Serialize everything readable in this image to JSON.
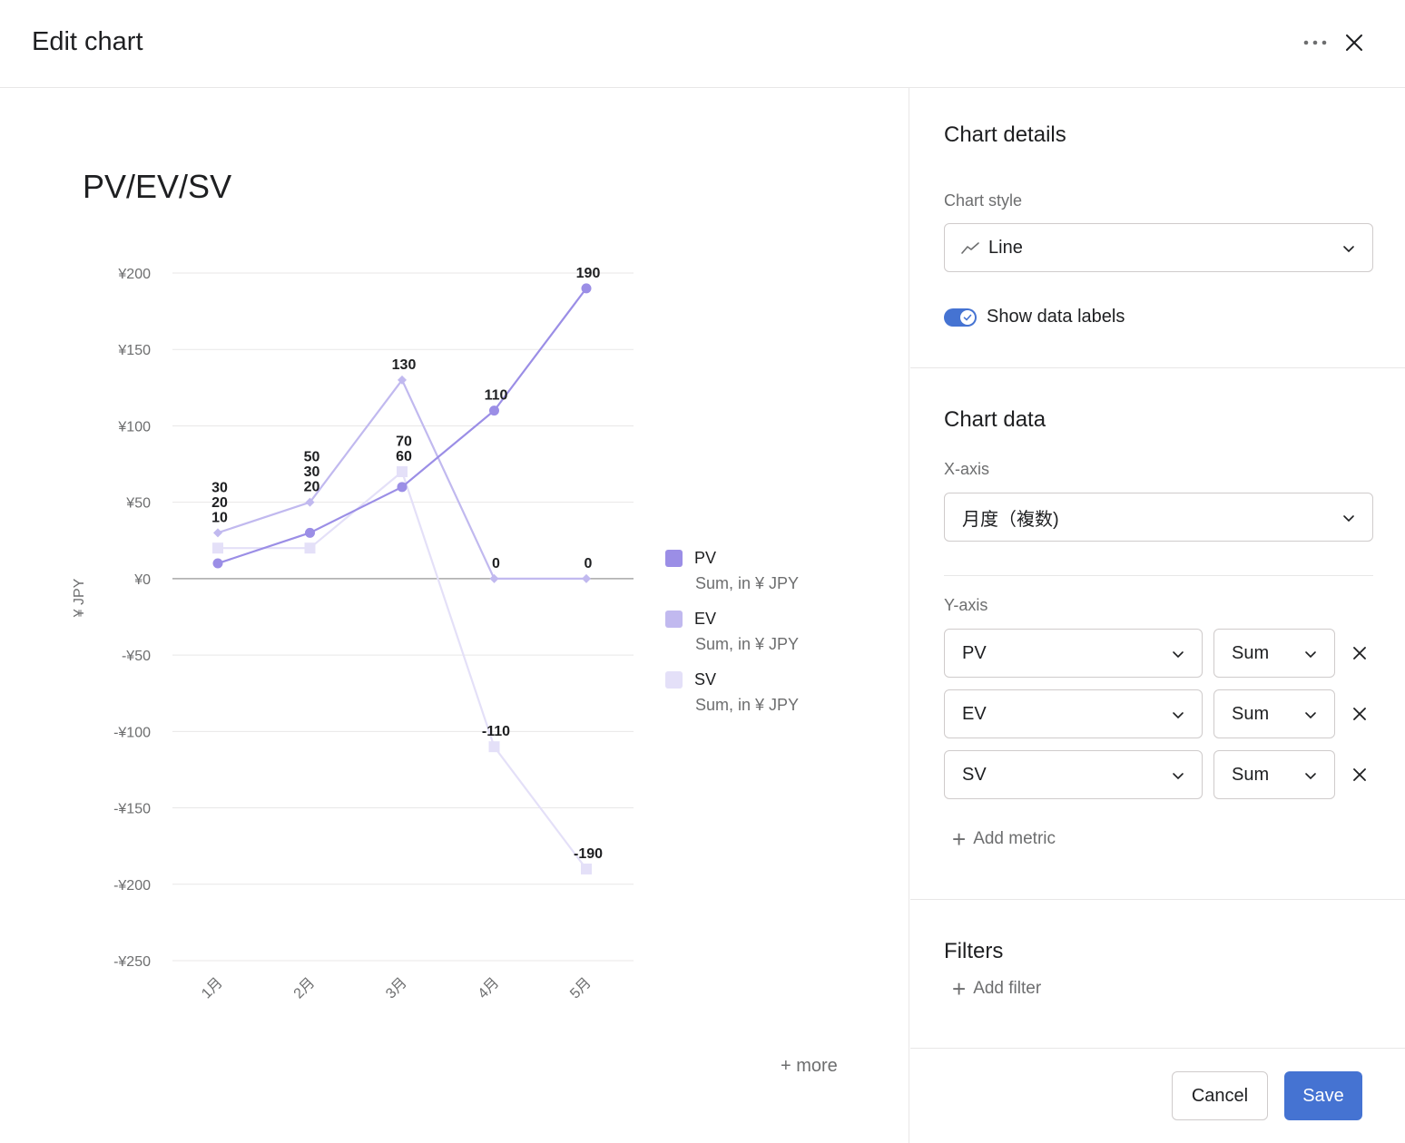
{
  "header": {
    "title": "Edit chart"
  },
  "chart_data": {
    "type": "line",
    "title": "PV/EV/SV",
    "ylabel": "¥ JPY",
    "xlabel": "",
    "categories": [
      "1月",
      "2月",
      "3月",
      "4月",
      "5月"
    ],
    "ylim": [
      -250,
      200
    ],
    "yticks": [
      200,
      150,
      100,
      50,
      0,
      -50,
      -100,
      -150,
      -200,
      -250
    ],
    "ytick_labels": [
      "¥200",
      "¥150",
      "¥100",
      "¥50",
      "¥0",
      "-¥50",
      "-¥100",
      "-¥150",
      "-¥200",
      "-¥250"
    ],
    "grid": true,
    "legend_position": "right",
    "series": [
      {
        "name": "PV",
        "sub": "Sum, in ¥ JPY",
        "color": "#9b8ee6",
        "marker": "circle",
        "values": [
          10,
          30,
          60,
          110,
          190
        ]
      },
      {
        "name": "EV",
        "sub": "Sum, in ¥ JPY",
        "color": "#c1b9ef",
        "marker": "diamond",
        "values": [
          30,
          50,
          130,
          0,
          0
        ]
      },
      {
        "name": "SV",
        "sub": "Sum, in ¥ JPY",
        "color": "#e4e0f8",
        "marker": "square",
        "values": [
          20,
          20,
          70,
          -110,
          -190
        ]
      }
    ]
  },
  "legend": {
    "more_label": "+ more"
  },
  "sidebar": {
    "details_title": "Chart details",
    "chart_style_label": "Chart style",
    "chart_style_value": "Line",
    "show_labels_text": "Show data labels",
    "data_title": "Chart data",
    "xaxis_label": "X-axis",
    "xaxis_value": "月度（複数)",
    "yaxis_label": "Y-axis",
    "metrics": [
      {
        "field": "PV",
        "agg": "Sum"
      },
      {
        "field": "EV",
        "agg": "Sum"
      },
      {
        "field": "SV",
        "agg": "Sum"
      }
    ],
    "add_metric": "Add metric",
    "filters_title": "Filters",
    "add_filter": "Add filter"
  },
  "footer": {
    "cancel": "Cancel",
    "save": "Save"
  }
}
